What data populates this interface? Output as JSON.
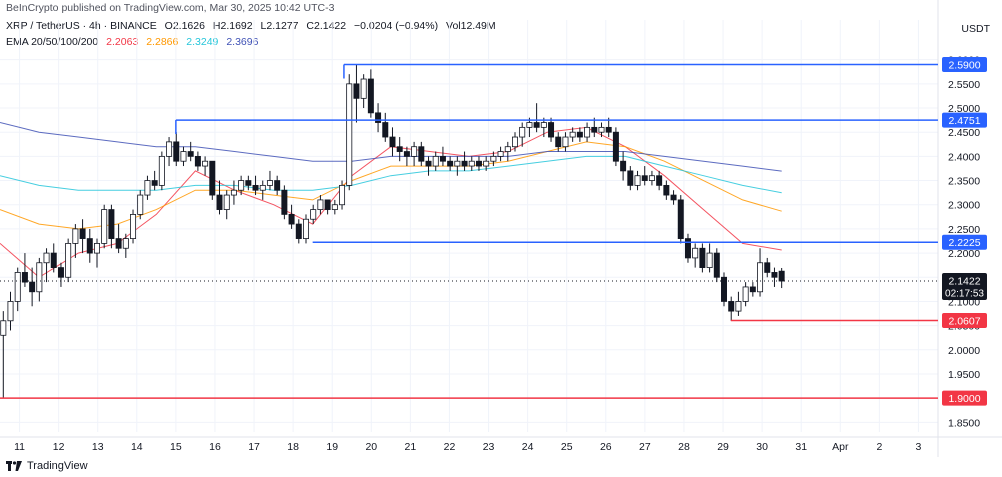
{
  "published_line": "BeInCrypto published on TradingView.com, Mar 30, 2025 10:42 UTC-3",
  "header": {
    "symbol": "XRP / TetherUS · 4h · BINANCE",
    "o": "O2.1626",
    "h": "H2.1692",
    "l": "L2.1277",
    "c": "C2.1422",
    "change": "−0.0204 (−0.94%)",
    "vol": "Vol12.49M"
  },
  "ema_legend": {
    "label": "EMA 20/50/100/200",
    "values": [
      "2.2063",
      "2.2866",
      "2.3249",
      "2.3696"
    ],
    "colors": [
      "#f23645",
      "#ff9800",
      "#26c6da",
      "#3f51b5"
    ]
  },
  "currency": "USDT",
  "footer_brand": "TradingView",
  "colors": {
    "up": "#ffffff",
    "down": "#131722",
    "support": "#f23645",
    "resistance": "#2962ff",
    "grid": "#f0f3fa",
    "axis_text": "#131722"
  },
  "chart_data": {
    "type": "candlestick",
    "timeframe": "4h",
    "y_axis_ticks": [
      "2.6000",
      "2.5500",
      "2.5000",
      "2.4500",
      "2.4000",
      "2.3500",
      "2.3000",
      "2.2500",
      "2.2000",
      "2.1500",
      "2.1000",
      "2.0500",
      "2.0000",
      "1.9500",
      "1.9000",
      "1.8500"
    ],
    "ylim": [
      1.83,
      2.62
    ],
    "x_axis_ticks": [
      "11",
      "12",
      "13",
      "14",
      "15",
      "16",
      "17",
      "18",
      "19",
      "20",
      "21",
      "22",
      "23",
      "24",
      "25",
      "26",
      "27",
      "28",
      "29",
      "30",
      "31",
      "Apr",
      "2",
      "3"
    ],
    "x_day_range": [
      10.5,
      34.5
    ],
    "last_price": "2.1422",
    "countdown": "02:17:53",
    "levels": [
      {
        "value": 2.59,
        "label": "2.5900",
        "type": "resistance",
        "from_day": 19.3
      },
      {
        "value": 2.4751,
        "label": "2.4751",
        "type": "resistance",
        "from_day": 15.0
      },
      {
        "value": 2.2225,
        "label": "2.2225",
        "type": "resistance",
        "from_day": 18.5
      },
      {
        "value": 2.0607,
        "label": "2.0607",
        "type": "support",
        "from_day": 29.2
      },
      {
        "value": 1.9,
        "label": "1.9000",
        "type": "support",
        "from_day": 10.4
      }
    ],
    "candles_ohlc": [
      [
        2.14,
        2.15,
        1.98,
        2.03
      ],
      [
        2.03,
        2.08,
        1.9,
        2.06
      ],
      [
        2.06,
        2.12,
        2.04,
        2.1
      ],
      [
        2.1,
        2.17,
        2.08,
        2.16
      ],
      [
        2.16,
        2.2,
        2.13,
        2.14
      ],
      [
        2.14,
        2.17,
        2.09,
        2.12
      ],
      [
        2.12,
        2.19,
        2.1,
        2.18
      ],
      [
        2.18,
        2.21,
        2.14,
        2.2
      ],
      [
        2.2,
        2.22,
        2.16,
        2.17
      ],
      [
        2.17,
        2.18,
        2.13,
        2.15
      ],
      [
        2.15,
        2.23,
        2.14,
        2.22
      ],
      [
        2.22,
        2.26,
        2.19,
        2.25
      ],
      [
        2.25,
        2.27,
        2.2,
        2.23
      ],
      [
        2.23,
        2.25,
        2.18,
        2.2
      ],
      [
        2.2,
        2.23,
        2.17,
        2.22
      ],
      [
        2.22,
        2.3,
        2.21,
        2.29
      ],
      [
        2.29,
        2.3,
        2.21,
        2.23
      ],
      [
        2.23,
        2.26,
        2.2,
        2.21
      ],
      [
        2.21,
        2.24,
        2.19,
        2.23
      ],
      [
        2.23,
        2.29,
        2.22,
        2.28
      ],
      [
        2.28,
        2.33,
        2.27,
        2.32
      ],
      [
        2.32,
        2.36,
        2.31,
        2.35
      ],
      [
        2.35,
        2.37,
        2.33,
        2.34
      ],
      [
        2.34,
        2.41,
        2.33,
        2.4
      ],
      [
        2.4,
        2.44,
        2.38,
        2.43
      ],
      [
        2.43,
        2.45,
        2.38,
        2.39
      ],
      [
        2.39,
        2.42,
        2.38,
        2.41
      ],
      [
        2.41,
        2.43,
        2.39,
        2.4
      ],
      [
        2.4,
        2.41,
        2.37,
        2.38
      ],
      [
        2.38,
        2.4,
        2.36,
        2.39
      ],
      [
        2.39,
        2.39,
        2.31,
        2.32
      ],
      [
        2.32,
        2.35,
        2.28,
        2.29
      ],
      [
        2.29,
        2.33,
        2.27,
        2.32
      ],
      [
        2.32,
        2.35,
        2.3,
        2.33
      ],
      [
        2.33,
        2.36,
        2.32,
        2.35
      ],
      [
        2.35,
        2.36,
        2.33,
        2.34
      ],
      [
        2.34,
        2.36,
        2.32,
        2.33
      ],
      [
        2.33,
        2.35,
        2.31,
        2.34
      ],
      [
        2.34,
        2.37,
        2.33,
        2.35
      ],
      [
        2.35,
        2.36,
        2.32,
        2.33
      ],
      [
        2.33,
        2.34,
        2.27,
        2.28
      ],
      [
        2.28,
        2.3,
        2.25,
        2.26
      ],
      [
        2.26,
        2.27,
        2.22,
        2.23
      ],
      [
        2.23,
        2.28,
        2.22,
        2.27
      ],
      [
        2.27,
        2.3,
        2.26,
        2.29
      ],
      [
        2.29,
        2.32,
        2.28,
        2.31
      ],
      [
        2.31,
        2.31,
        2.28,
        2.29
      ],
      [
        2.29,
        2.31,
        2.28,
        2.3
      ],
      [
        2.3,
        2.35,
        2.29,
        2.34
      ],
      [
        2.34,
        2.57,
        2.33,
        2.55
      ],
      [
        2.55,
        2.59,
        2.47,
        2.52
      ],
      [
        2.52,
        2.57,
        2.5,
        2.56
      ],
      [
        2.56,
        2.58,
        2.48,
        2.49
      ],
      [
        2.49,
        2.51,
        2.45,
        2.47
      ],
      [
        2.47,
        2.49,
        2.43,
        2.44
      ],
      [
        2.44,
        2.46,
        2.4,
        2.42
      ],
      [
        2.42,
        2.44,
        2.39,
        2.41
      ],
      [
        2.41,
        2.42,
        2.38,
        2.4
      ],
      [
        2.4,
        2.43,
        2.38,
        2.42
      ],
      [
        2.42,
        2.43,
        2.38,
        2.39
      ],
      [
        2.39,
        2.4,
        2.36,
        2.38
      ],
      [
        2.38,
        2.41,
        2.37,
        2.4
      ],
      [
        2.4,
        2.42,
        2.38,
        2.39
      ],
      [
        2.39,
        2.4,
        2.37,
        2.38
      ],
      [
        2.38,
        2.4,
        2.36,
        2.39
      ],
      [
        2.39,
        2.41,
        2.37,
        2.38
      ],
      [
        2.38,
        2.4,
        2.37,
        2.39
      ],
      [
        2.39,
        2.4,
        2.37,
        2.38
      ],
      [
        2.38,
        2.4,
        2.37,
        2.39
      ],
      [
        2.39,
        2.41,
        2.38,
        2.4
      ],
      [
        2.4,
        2.42,
        2.39,
        2.41
      ],
      [
        2.41,
        2.43,
        2.39,
        2.42
      ],
      [
        2.42,
        2.45,
        2.41,
        2.44
      ],
      [
        2.44,
        2.47,
        2.42,
        2.46
      ],
      [
        2.46,
        2.48,
        2.44,
        2.47
      ],
      [
        2.47,
        2.51,
        2.45,
        2.46
      ],
      [
        2.46,
        2.48,
        2.44,
        2.47
      ],
      [
        2.47,
        2.48,
        2.43,
        2.44
      ],
      [
        2.44,
        2.45,
        2.41,
        2.42
      ],
      [
        2.42,
        2.45,
        2.41,
        2.44
      ],
      [
        2.44,
        2.46,
        2.43,
        2.45
      ],
      [
        2.45,
        2.46,
        2.43,
        2.44
      ],
      [
        2.44,
        2.47,
        2.43,
        2.46
      ],
      [
        2.46,
        2.48,
        2.44,
        2.45
      ],
      [
        2.45,
        2.47,
        2.44,
        2.46
      ],
      [
        2.46,
        2.48,
        2.44,
        2.45
      ],
      [
        2.45,
        2.46,
        2.38,
        2.39
      ],
      [
        2.39,
        2.41,
        2.35,
        2.37
      ],
      [
        2.37,
        2.38,
        2.33,
        2.34
      ],
      [
        2.34,
        2.37,
        2.33,
        2.36
      ],
      [
        2.36,
        2.38,
        2.34,
        2.35
      ],
      [
        2.35,
        2.37,
        2.34,
        2.36
      ],
      [
        2.36,
        2.37,
        2.33,
        2.34
      ],
      [
        2.34,
        2.35,
        2.31,
        2.32
      ],
      [
        2.32,
        2.33,
        2.3,
        2.31
      ],
      [
        2.31,
        2.32,
        2.22,
        2.23
      ],
      [
        2.23,
        2.24,
        2.18,
        2.19
      ],
      [
        2.19,
        2.22,
        2.17,
        2.21
      ],
      [
        2.21,
        2.22,
        2.16,
        2.17
      ],
      [
        2.17,
        2.22,
        2.16,
        2.2
      ],
      [
        2.2,
        2.21,
        2.14,
        2.15
      ],
      [
        2.15,
        2.16,
        2.09,
        2.1
      ],
      [
        2.1,
        2.11,
        2.06,
        2.08
      ],
      [
        2.08,
        2.12,
        2.07,
        2.1
      ],
      [
        2.1,
        2.14,
        2.09,
        2.13
      ],
      [
        2.13,
        2.14,
        2.11,
        2.12
      ],
      [
        2.12,
        2.21,
        2.11,
        2.18
      ],
      [
        2.18,
        2.19,
        2.15,
        2.16
      ],
      [
        2.16,
        2.17,
        2.13,
        2.15
      ],
      [
        2.1626,
        2.1692,
        2.1277,
        2.1422
      ]
    ],
    "series": [
      {
        "name": "EMA 20",
        "color": "#f23645",
        "points": [
          [
            10.5,
            2.22
          ],
          [
            11.5,
            2.15
          ],
          [
            12.5,
            2.2
          ],
          [
            13.5,
            2.22
          ],
          [
            14.5,
            2.28
          ],
          [
            15.5,
            2.37
          ],
          [
            16.5,
            2.33
          ],
          [
            17.5,
            2.3
          ],
          [
            18.5,
            2.26
          ],
          [
            19.5,
            2.36
          ],
          [
            20.5,
            2.42
          ],
          [
            21.5,
            2.41
          ],
          [
            22.5,
            2.4
          ],
          [
            23.5,
            2.41
          ],
          [
            24.5,
            2.45
          ],
          [
            25.5,
            2.46
          ],
          [
            26.5,
            2.42
          ],
          [
            27.5,
            2.36
          ],
          [
            28.5,
            2.29
          ],
          [
            29.5,
            2.22
          ],
          [
            30.5,
            2.2063
          ]
        ]
      },
      {
        "name": "EMA 50",
        "color": "#ff9800",
        "points": [
          [
            10.5,
            2.29
          ],
          [
            11.5,
            2.26
          ],
          [
            12.5,
            2.25
          ],
          [
            13.5,
            2.26
          ],
          [
            14.5,
            2.29
          ],
          [
            15.5,
            2.33
          ],
          [
            16.5,
            2.33
          ],
          [
            17.5,
            2.32
          ],
          [
            18.5,
            2.31
          ],
          [
            19.5,
            2.35
          ],
          [
            20.5,
            2.38
          ],
          [
            21.5,
            2.38
          ],
          [
            22.5,
            2.38
          ],
          [
            23.5,
            2.39
          ],
          [
            24.5,
            2.41
          ],
          [
            25.5,
            2.43
          ],
          [
            26.5,
            2.42
          ],
          [
            27.5,
            2.39
          ],
          [
            28.5,
            2.35
          ],
          [
            29.5,
            2.31
          ],
          [
            30.5,
            2.2866
          ]
        ]
      },
      {
        "name": "EMA 100",
        "color": "#26c6da",
        "points": [
          [
            10.5,
            2.36
          ],
          [
            11.5,
            2.34
          ],
          [
            12.5,
            2.33
          ],
          [
            13.5,
            2.33
          ],
          [
            14.5,
            2.33
          ],
          [
            15.5,
            2.34
          ],
          [
            16.5,
            2.34
          ],
          [
            17.5,
            2.33
          ],
          [
            18.5,
            2.33
          ],
          [
            19.5,
            2.34
          ],
          [
            20.5,
            2.36
          ],
          [
            21.5,
            2.37
          ],
          [
            22.5,
            2.37
          ],
          [
            23.5,
            2.38
          ],
          [
            24.5,
            2.39
          ],
          [
            25.5,
            2.4
          ],
          [
            26.5,
            2.4
          ],
          [
            27.5,
            2.38
          ],
          [
            28.5,
            2.36
          ],
          [
            29.5,
            2.34
          ],
          [
            30.5,
            2.3249
          ]
        ]
      },
      {
        "name": "EMA 200",
        "color": "#3f51b5",
        "points": [
          [
            10.5,
            2.47
          ],
          [
            11.5,
            2.45
          ],
          [
            12.5,
            2.44
          ],
          [
            13.5,
            2.43
          ],
          [
            14.5,
            2.42
          ],
          [
            15.5,
            2.42
          ],
          [
            16.5,
            2.41
          ],
          [
            17.5,
            2.4
          ],
          [
            18.5,
            2.39
          ],
          [
            19.5,
            2.39
          ],
          [
            20.5,
            2.4
          ],
          [
            21.5,
            2.4
          ],
          [
            22.5,
            2.4
          ],
          [
            23.5,
            2.4
          ],
          [
            24.5,
            2.41
          ],
          [
            25.5,
            2.41
          ],
          [
            26.5,
            2.41
          ],
          [
            27.5,
            2.4
          ],
          [
            28.5,
            2.39
          ],
          [
            29.5,
            2.38
          ],
          [
            30.5,
            2.3696
          ]
        ]
      }
    ]
  }
}
